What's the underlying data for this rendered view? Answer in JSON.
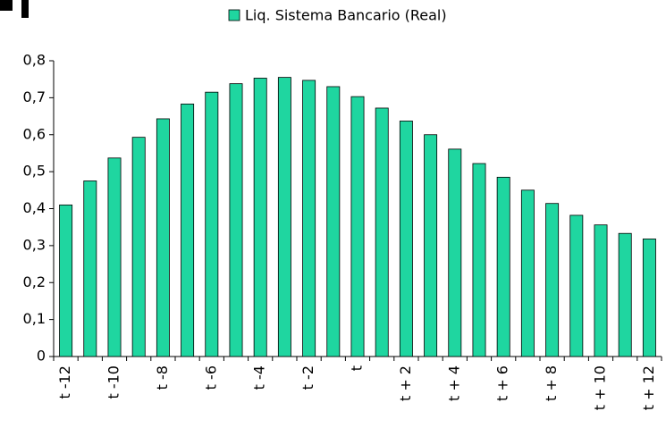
{
  "chart_data": {
    "type": "bar",
    "categories": [
      "t -12",
      null,
      "t -10",
      null,
      "t -8",
      null,
      "t -6",
      null,
      "t -4",
      null,
      "t -2",
      null,
      "t",
      null,
      "t + 2",
      null,
      "t + 4",
      null,
      "t + 6",
      null,
      "t + 8",
      null,
      "t + 10",
      null,
      "t + 12"
    ],
    "series": [
      {
        "name": "Liq. Sistema Bancario (Real)",
        "color": "#1fd6a0",
        "values": [
          0.41,
          0.475,
          0.537,
          0.593,
          0.643,
          0.683,
          0.715,
          0.738,
          0.753,
          0.755,
          0.747,
          0.73,
          0.703,
          0.672,
          0.637,
          0.6,
          0.561,
          0.522,
          0.485,
          0.45,
          0.414,
          0.382,
          0.356,
          0.333,
          0.318
        ]
      }
    ],
    "ylim": [
      0,
      0.8
    ],
    "yticks": [
      0,
      {
        "value": 0.1,
        "label": "0,1"
      },
      {
        "value": 0.2,
        "label": "0,2"
      },
      {
        "value": 0.3,
        "label": "0,3"
      },
      {
        "value": 0.4,
        "label": "0,4"
      },
      {
        "value": 0.5,
        "label": "0,5"
      },
      {
        "value": 0.6,
        "label": "0,6"
      },
      {
        "value": 0.7,
        "label": "0,7"
      },
      {
        "value": 0.8,
        "label": "0,8"
      }
    ],
    "legend": "top"
  }
}
